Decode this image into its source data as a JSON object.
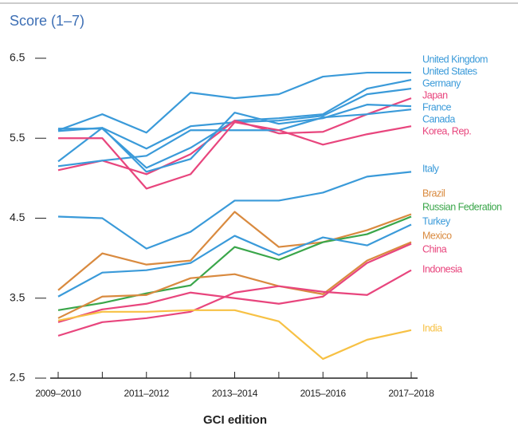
{
  "chart_data": {
    "type": "line",
    "title": "Score (1–7)",
    "x_label": "GCI edition",
    "categories": [
      "2009–2010",
      null,
      "2011–2012",
      null,
      "2013–2014",
      null,
      "2015–2016",
      null,
      "2017–2018"
    ],
    "ylim": [
      2.5,
      6.5
    ],
    "yticks": [
      6.5,
      5.5,
      4.5,
      3.5,
      2.5
    ],
    "series": [
      {
        "name": "United Kingdom",
        "color": "#3a9ad9",
        "values": [
          5.6,
          5.8,
          5.57,
          6.07,
          6.0,
          6.05,
          6.27,
          6.32,
          6.32
        ]
      },
      {
        "name": "United States",
        "color": "#3a9ad9",
        "values": [
          5.59,
          5.63,
          5.37,
          5.65,
          5.7,
          5.72,
          5.78,
          6.05,
          6.12
        ]
      },
      {
        "name": "Germany",
        "color": "#3a9ad9",
        "values": [
          5.62,
          5.62,
          5.13,
          5.38,
          5.72,
          5.75,
          5.8,
          6.12,
          6.23
        ]
      },
      {
        "name": "Japan",
        "color": "#e8457d",
        "values": [
          5.1,
          5.22,
          5.05,
          5.3,
          5.72,
          5.56,
          5.58,
          5.8,
          6.0
        ]
      },
      {
        "name": "France",
        "color": "#3a9ad9",
        "values": [
          5.21,
          5.63,
          5.08,
          5.24,
          5.82,
          5.68,
          5.75,
          5.92,
          5.9
        ]
      },
      {
        "name": "Canada",
        "color": "#3a9ad9",
        "values": [
          5.15,
          5.22,
          5.28,
          5.6,
          5.6,
          5.6,
          5.76,
          5.8,
          5.86
        ]
      },
      {
        "name": "Korea, Rep.",
        "color": "#e8457d",
        "values": [
          5.5,
          5.5,
          4.87,
          5.05,
          5.7,
          5.6,
          5.42,
          5.55,
          5.65
        ]
      },
      {
        "name": "Italy",
        "color": "#3a9ad9",
        "values": [
          4.52,
          4.5,
          4.12,
          4.33,
          4.72,
          4.72,
          4.82,
          5.02,
          5.08
        ]
      },
      {
        "name": "Brazil",
        "color": "#d98a3f",
        "values": [
          3.6,
          4.06,
          3.92,
          3.97,
          4.58,
          4.14,
          4.2,
          4.35,
          4.55
        ]
      },
      {
        "name": "Russian Federation",
        "color": "#3aa64a",
        "values": [
          3.35,
          3.44,
          3.56,
          3.66,
          4.14,
          3.98,
          4.2,
          4.3,
          4.52
        ]
      },
      {
        "name": "Turkey",
        "color": "#3a9ad9",
        "values": [
          3.52,
          3.82,
          3.85,
          3.94,
          4.28,
          4.04,
          4.26,
          4.16,
          4.42
        ]
      },
      {
        "name": "Mexico",
        "color": "#d98a3f",
        "values": [
          3.25,
          3.52,
          3.54,
          3.75,
          3.8,
          3.65,
          3.55,
          3.97,
          4.2
        ]
      },
      {
        "name": "China",
        "color": "#e8457d",
        "values": [
          3.2,
          3.36,
          3.43,
          3.57,
          3.5,
          3.43,
          3.52,
          3.94,
          4.18
        ]
      },
      {
        "name": "Indonesia",
        "color": "#e8457d",
        "values": [
          3.03,
          3.2,
          3.25,
          3.33,
          3.57,
          3.65,
          3.58,
          3.54,
          3.85
        ]
      },
      {
        "name": "India",
        "color": "#f7c144",
        "values": [
          3.22,
          3.33,
          3.33,
          3.35,
          3.35,
          3.21,
          2.74,
          2.98,
          3.1
        ]
      }
    ]
  }
}
